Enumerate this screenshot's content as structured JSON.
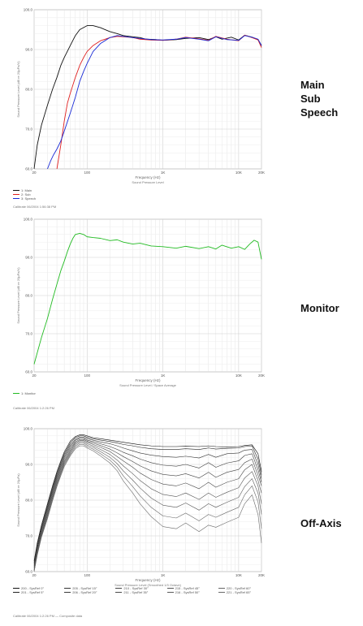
{
  "side_labels": {
    "panel1": [
      "Main",
      "Sub",
      "Speech"
    ],
    "panel2": "Monitor",
    "panel3": "Off-Axis"
  },
  "chart_data": [
    {
      "type": "line",
      "ylabel": "Sound Pressure Level (dB re 20µPa/V)",
      "xlabel": "Frequency (Hz)",
      "x_scale": "log",
      "xlim": [
        20,
        20000
      ],
      "ylim": [
        60,
        100
      ],
      "x_ticks": [
        20,
        100,
        1000,
        10000,
        20000
      ],
      "x_tick_labels": [
        "20",
        "100",
        "1K",
        "10K",
        "20K"
      ],
      "y_ticks": [
        60,
        70,
        80,
        90,
        100
      ],
      "y_tick_labels": [
        "60.0",
        "70.0",
        "80.0",
        "90.0",
        "100.0"
      ],
      "subtitle": "Sound Pressure Level",
      "footer": "Calibrate 06/2004 1:56:38 PM",
      "colors": {
        "main": "#111111",
        "sub": "#e02020",
        "speech": "#1a2bd6"
      },
      "legend": [
        {
          "label": "1: Main",
          "color": "#111111"
        },
        {
          "label": "2: Sub",
          "color": "#e02020"
        },
        {
          "label": "3: Speech",
          "color": "#1a2bd6"
        }
      ],
      "series": [
        {
          "color": "#111111",
          "x": [
            20,
            22,
            25,
            30,
            35,
            40,
            45,
            50,
            60,
            70,
            80,
            100,
            120,
            150,
            200,
            250,
            300,
            400,
            500,
            600,
            800,
            1000,
            1500,
            2000,
            3000,
            4000,
            5000,
            6000,
            8000,
            10000,
            12000,
            15000,
            18000,
            20000
          ],
          "y": [
            60,
            66,
            71,
            76,
            80,
            83,
            86,
            88,
            91,
            93.5,
            95,
            96,
            96,
            95.5,
            94.5,
            94,
            93.5,
            93.2,
            93,
            92.6,
            92.5,
            92.3,
            92.5,
            92.8,
            93,
            92.5,
            93.2,
            92.6,
            93.1,
            92.4,
            93.6,
            93.1,
            92.5,
            91
          ]
        },
        {
          "color": "#e02020",
          "x": [
            40,
            45,
            50,
            55,
            60,
            70,
            80,
            90,
            100,
            120,
            150,
            200,
            250,
            300,
            400,
            500,
            700,
            1000,
            1500,
            2000,
            3000,
            4000,
            5000,
            7000,
            10000,
            12000,
            15000,
            18000,
            20000
          ],
          "y": [
            60,
            66,
            72,
            76.5,
            79,
            83,
            86,
            88,
            89.5,
            91,
            92.2,
            93,
            93.3,
            93.2,
            93,
            92.6,
            92.4,
            92.3,
            92.6,
            93.1,
            92.7,
            92.3,
            93.3,
            92.6,
            92.2,
            93.6,
            93,
            92.4,
            90.5
          ]
        },
        {
          "color": "#1a2bd6",
          "x": [
            30,
            33,
            36,
            40,
            45,
            50,
            60,
            70,
            80,
            90,
            100,
            120,
            150,
            200,
            250,
            300,
            400,
            500,
            700,
            1000,
            1500,
            2000,
            3000,
            4000,
            5000,
            7000,
            10000,
            12000,
            15000,
            18000,
            20000
          ],
          "y": [
            60,
            62,
            63.5,
            65,
            67,
            69.5,
            74,
            78,
            82,
            84.5,
            86.5,
            89.5,
            91.5,
            93,
            93.5,
            93.3,
            93,
            92.8,
            92.5,
            92.4,
            92.6,
            93,
            92.6,
            92.2,
            93.2,
            92.5,
            92.3,
            93.5,
            93.1,
            92.6,
            91
          ]
        }
      ]
    },
    {
      "type": "line",
      "ylabel": "Sound Pressure Level (dB re 20µPa/V)",
      "xlabel": "Frequency (Hz)",
      "x_scale": "log",
      "xlim": [
        20,
        20000
      ],
      "ylim": [
        60,
        100
      ],
      "x_ticks": [
        20,
        100,
        1000,
        10000,
        20000
      ],
      "x_tick_labels": [
        "20",
        "100",
        "1K",
        "10K",
        "20K"
      ],
      "y_ticks": [
        60,
        70,
        80,
        90,
        100
      ],
      "y_tick_labels": [
        "60.0",
        "70.0",
        "80.0",
        "90.0",
        "100.0"
      ],
      "subtitle": "Sound Pressure Level / Space Average",
      "footer": "Calibrate 06/2004 1:2:26 PM",
      "legend": [
        {
          "label": "1: Monitor",
          "color": "#22bb22"
        }
      ],
      "series": [
        {
          "color": "#22bb22",
          "x": [
            20,
            22,
            25,
            30,
            35,
            40,
            45,
            50,
            55,
            60,
            65,
            70,
            80,
            90,
            100,
            120,
            150,
            200,
            250,
            300,
            400,
            500,
            700,
            1000,
            1500,
            2000,
            3000,
            4000,
            5000,
            6000,
            8000,
            10000,
            12000,
            14000,
            16000,
            18000,
            20000
          ],
          "y": [
            62,
            65,
            69,
            74,
            79,
            83,
            86.5,
            89,
            91.5,
            93.5,
            95,
            96,
            96.3,
            96,
            95.4,
            95.2,
            95,
            94.4,
            94.6,
            94,
            93.5,
            93.7,
            93,
            92.8,
            92.4,
            92.9,
            92.3,
            92.8,
            92.2,
            93.2,
            92.4,
            92.8,
            92.1,
            93.5,
            94.5,
            94,
            89.5
          ]
        }
      ]
    },
    {
      "type": "line",
      "ylabel": "Sound Pressure Level (dB re 20µPa)",
      "xlabel": "Frequency (Hz)",
      "x_scale": "log",
      "xlim": [
        20,
        20000
      ],
      "ylim": [
        60,
        100
      ],
      "x_ticks": [
        20,
        100,
        1000,
        10000,
        20000
      ],
      "x_tick_labels": [
        "20",
        "100",
        "1K",
        "10K",
        "20K"
      ],
      "y_ticks": [
        60,
        70,
        80,
        90,
        100
      ],
      "y_tick_labels": [
        "60.0",
        "70.0",
        "80.0",
        "90.0",
        "100.0"
      ],
      "subtitle": "Sound Pressure Level (Smoothed 1/3 Octave)",
      "footer": "Calibrate 06/2004 1:2:26 PM — Composite data",
      "legend": [
        {
          "label": "200 - SysRef 0°",
          "color": "#111111"
        },
        {
          "label": "205 - SysRef 15°",
          "color": "#333333"
        },
        {
          "label": "210 - SysRef 30°",
          "color": "#444444"
        },
        {
          "label": "215 - SysRef 45°",
          "color": "#555555"
        },
        {
          "label": "220 - SysRef 60°",
          "color": "#666666"
        },
        {
          "label": "201 - SysRef 5°",
          "color": "#222222"
        },
        {
          "label": "206 - SysRef 20°",
          "color": "#3a3a3a"
        },
        {
          "label": "211 - SysRef 35°",
          "color": "#4a4a4a"
        },
        {
          "label": "216 - SysRef 50°",
          "color": "#5a5a5a"
        },
        {
          "label": "221 - SysRef 65°",
          "color": "#6a6a6a"
        }
      ],
      "base_x": [
        20,
        22,
        25,
        30,
        35,
        40,
        45,
        50,
        60,
        70,
        80,
        90,
        100,
        120,
        150,
        200,
        250,
        300,
        400,
        500,
        700,
        1000,
        1500,
        2000,
        3000,
        4000,
        5000,
        7000,
        10000,
        12000,
        15000,
        18000,
        20000
      ],
      "series": [
        {
          "color": "#111111",
          "y": [
            63,
            68,
            73,
            79,
            84,
            88,
            91,
            93.5,
            96.5,
            97.8,
            98.3,
            98.3,
            98,
            97.5,
            97.2,
            96.8,
            96.5,
            96.2,
            95.8,
            95.5,
            95.2,
            95,
            95,
            95.1,
            95,
            95.2,
            95,
            94.9,
            95,
            95.3,
            95.5,
            93,
            88
          ]
        },
        {
          "color": "#222222",
          "y": [
            62.5,
            67.5,
            72.5,
            78.5,
            83.5,
            87.5,
            90.5,
            93,
            96,
            97.5,
            98,
            98,
            97.6,
            97.2,
            96.8,
            96.4,
            96,
            95.6,
            95.2,
            94.8,
            94.4,
            94.2,
            94.2,
            94.4,
            94.2,
            94.6,
            94.3,
            94.5,
            94.6,
            95,
            95.2,
            91.5,
            87
          ]
        },
        {
          "color": "#333333",
          "y": [
            62,
            67,
            72,
            78,
            83,
            87,
            90,
            92.5,
            95.5,
            97,
            97.6,
            97.6,
            97.2,
            96.8,
            96.3,
            95.8,
            95.2,
            94.6,
            93.8,
            93.2,
            92.6,
            92.2,
            92,
            92.3,
            91.8,
            92.8,
            92,
            93,
            93.2,
            94,
            94.2,
            90,
            86
          ]
        },
        {
          "color": "#3a3a3a",
          "y": [
            61.5,
            66.5,
            71.5,
            77.5,
            82.5,
            86.5,
            89.5,
            92,
            95,
            96.7,
            97.3,
            97.3,
            96.8,
            96.4,
            95.8,
            95,
            94.2,
            93.4,
            92.4,
            91.5,
            90.5,
            89.8,
            89.5,
            90,
            89,
            90.5,
            89.2,
            90.4,
            91,
            92.5,
            93,
            88.5,
            85
          ]
        },
        {
          "color": "#444444",
          "y": [
            61,
            66,
            71,
            77,
            82,
            86,
            89,
            91.5,
            94.5,
            96.3,
            97,
            97,
            96.5,
            96,
            95.3,
            94.3,
            93.2,
            92.2,
            90.8,
            89.6,
            88.2,
            87.2,
            86.8,
            87.4,
            86.2,
            87.8,
            86.4,
            87.8,
            88.6,
            90.5,
            91.5,
            87,
            84
          ]
        },
        {
          "color": "#4a4a4a",
          "y": [
            60.5,
            65.5,
            70.5,
            76.5,
            81.5,
            85.5,
            88.5,
            91,
            94,
            96,
            96.7,
            96.7,
            96.2,
            95.6,
            94.8,
            93.6,
            92.2,
            91,
            89.2,
            87.6,
            85.8,
            84.5,
            84,
            84.8,
            83.2,
            85,
            83.6,
            85,
            86,
            88.5,
            90,
            85.5,
            82
          ]
        },
        {
          "color": "#555555",
          "y": [
            60.2,
            65.2,
            70.2,
            76,
            81,
            85,
            88,
            90.6,
            93.6,
            95.6,
            96.4,
            96.4,
            95.8,
            95.2,
            94.2,
            92.8,
            91.2,
            89.6,
            87.4,
            85.5,
            83.2,
            81.6,
            81,
            82,
            80.2,
            82,
            80.8,
            82.2,
            83.5,
            86.2,
            88,
            84,
            79
          ]
        },
        {
          "color": "#5a5a5a",
          "y": [
            60,
            65,
            70,
            75.6,
            80.6,
            84.6,
            87.6,
            90.2,
            93.2,
            95.2,
            96,
            96,
            95.4,
            94.8,
            93.6,
            92,
            90.2,
            88.2,
            85.6,
            83.4,
            80.6,
            78.6,
            78,
            79.2,
            77.2,
            79,
            78,
            79.4,
            80.8,
            83.8,
            86,
            82,
            76
          ]
        },
        {
          "color": "#666666",
          "y": [
            59.8,
            64.8,
            69.8,
            75.2,
            80.2,
            84.2,
            87.2,
            89.8,
            92.8,
            94.8,
            95.6,
            95.6,
            95,
            94.3,
            93,
            91.2,
            89.2,
            86.8,
            83.8,
            81.2,
            78,
            75.6,
            75,
            76.4,
            74.2,
            76,
            75.2,
            76.6,
            78,
            81.5,
            84,
            79.5,
            72
          ]
        },
        {
          "color": "#6a6a6a",
          "y": [
            59.6,
            64.6,
            69.6,
            74.8,
            79.8,
            83.8,
            86.8,
            89.4,
            92.4,
            94.4,
            95.2,
            95.2,
            94.6,
            93.8,
            92.4,
            90.4,
            88.2,
            85.4,
            82,
            79,
            75.4,
            72.6,
            72,
            73.6,
            71.2,
            73,
            72.4,
            73.8,
            75.2,
            79,
            81.5,
            76,
            68
          ]
        }
      ]
    }
  ]
}
